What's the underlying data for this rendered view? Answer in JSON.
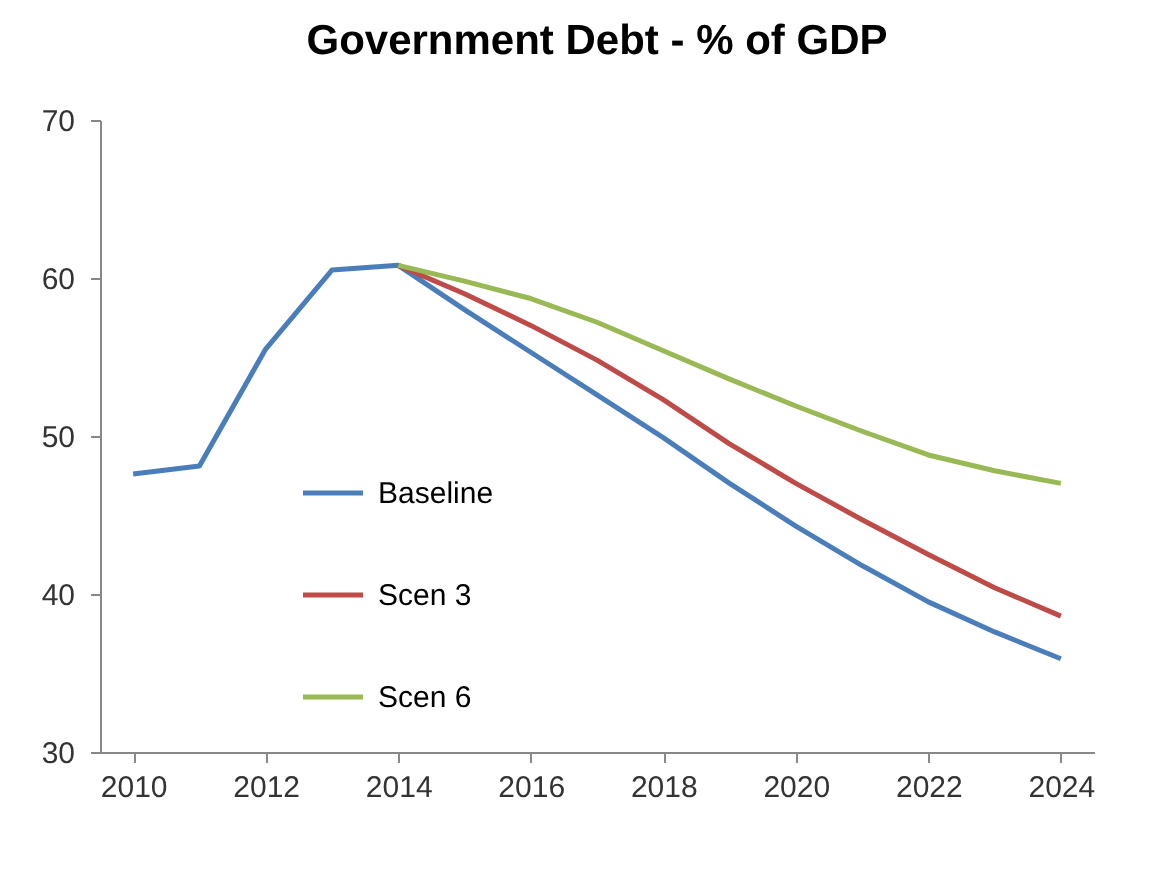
{
  "chart_data": {
    "type": "line",
    "title": "Government Debt - % of GDP",
    "x": [
      2010,
      2011,
      2012,
      2013,
      2014,
      2015,
      2016,
      2017,
      2018,
      2019,
      2020,
      2021,
      2022,
      2023,
      2024
    ],
    "series": [
      {
        "name": "Baseline",
        "color": "#4a7ebb",
        "values": [
          47.6,
          48.1,
          55.5,
          60.5,
          60.8,
          58,
          55.3,
          52.6,
          49.9,
          47,
          44.3,
          41.8,
          39.5,
          37.6,
          35.9
        ]
      },
      {
        "name": "Scen 3",
        "color": "#be4b48",
        "values": [
          null,
          null,
          null,
          null,
          60.8,
          59,
          57,
          54.8,
          52.3,
          49.5,
          47,
          44.7,
          42.5,
          40.4,
          38.6
        ]
      },
      {
        "name": "Scen 6",
        "color": "#98b954",
        "values": [
          null,
          null,
          null,
          null,
          60.8,
          59.8,
          58.7,
          57.2,
          55.4,
          53.6,
          51.9,
          50.3,
          48.8,
          47.8,
          47.0
        ]
      }
    ],
    "xlim": [
      2009.5,
      2024.5
    ],
    "xticks": [
      2010,
      2012,
      2014,
      2016,
      2018,
      2020,
      2022,
      2024
    ],
    "ylim": [
      30,
      70
    ],
    "yticks": [
      30,
      40,
      50,
      60,
      70
    ],
    "grid": false,
    "legend": "bottom left",
    "marker": "none",
    "line_style": "solid"
  }
}
